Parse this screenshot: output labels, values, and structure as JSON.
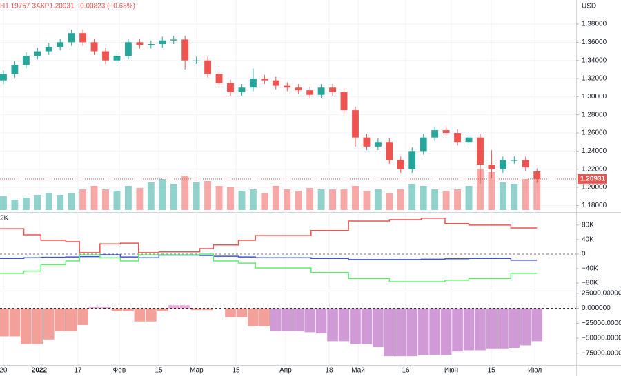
{
  "chart_data": [
    {
      "type": "candlestick",
      "currency": "USD",
      "header": "Н1.19757 ЗАКР1.20931 −0.00823 (−0.68%)",
      "open": [
        1.318,
        1.325,
        1.335,
        1.345,
        1.35,
        1.355,
        1.36,
        1.37,
        1.36,
        1.35,
        1.34,
        1.345,
        1.36,
        1.357,
        1.358,
        1.362,
        1.363,
        1.34,
        1.34,
        1.325,
        1.315,
        1.305,
        1.31,
        1.32,
        1.318,
        1.312,
        1.31,
        1.307,
        1.302,
        1.31,
        1.305,
        1.285,
        1.255,
        1.245,
        1.25,
        1.23,
        1.22,
        1.24,
        1.255,
        1.263,
        1.26,
        1.25,
        1.255,
        1.225,
        1.22,
        1.23,
        1.23,
        1.21754
      ],
      "high": [
        1.329,
        1.339,
        1.349,
        1.354,
        1.359,
        1.364,
        1.374,
        1.374,
        1.364,
        1.354,
        1.349,
        1.364,
        1.364,
        1.362,
        1.366,
        1.367,
        1.367,
        1.344,
        1.344,
        1.329,
        1.319,
        1.314,
        1.331,
        1.324,
        1.322,
        1.316,
        1.314,
        1.311,
        1.314,
        1.314,
        1.309,
        1.289,
        1.259,
        1.254,
        1.254,
        1.234,
        1.244,
        1.259,
        1.267,
        1.267,
        1.264,
        1.259,
        1.259,
        1.241,
        1.234,
        1.234,
        1.234,
        1.221
      ],
      "low": [
        1.314,
        1.321,
        1.331,
        1.341,
        1.346,
        1.351,
        1.356,
        1.356,
        1.346,
        1.336,
        1.336,
        1.341,
        1.353,
        1.353,
        1.354,
        1.358,
        1.33,
        1.336,
        1.321,
        1.311,
        1.301,
        1.301,
        1.306,
        1.314,
        1.308,
        1.306,
        1.303,
        1.298,
        1.298,
        1.301,
        1.281,
        1.245,
        1.241,
        1.241,
        1.226,
        1.216,
        1.216,
        1.236,
        1.251,
        1.256,
        1.246,
        1.246,
        1.204,
        1.21,
        1.216,
        1.226,
        1.218,
        1.205
      ],
      "close": [
        1.325,
        1.335,
        1.345,
        1.35,
        1.355,
        1.36,
        1.37,
        1.36,
        1.35,
        1.34,
        1.345,
        1.36,
        1.357,
        1.358,
        1.362,
        1.363,
        1.34,
        1.34,
        1.325,
        1.315,
        1.305,
        1.31,
        1.32,
        1.318,
        1.312,
        1.31,
        1.307,
        1.302,
        1.31,
        1.305,
        1.285,
        1.255,
        1.245,
        1.25,
        1.23,
        1.22,
        1.24,
        1.255,
        1.263,
        1.26,
        1.25,
        1.255,
        1.225,
        1.22,
        1.23,
        1.23,
        1.222,
        1.20931
      ],
      "volume": [
        20,
        15,
        18,
        22,
        25,
        22,
        25,
        30,
        35,
        30,
        28,
        35,
        32,
        40,
        45,
        38,
        50,
        40,
        42,
        35,
        33,
        28,
        30,
        25,
        35,
        30,
        28,
        32,
        30,
        30,
        30,
        35,
        28,
        30,
        25,
        30,
        38,
        35,
        30,
        28,
        30,
        35,
        60,
        55,
        40,
        38,
        45,
        45
      ],
      "up_color": "#26a69a",
      "down_color": "#ef5350",
      "last_price": {
        "value": 1.20931,
        "label": "1.20931"
      },
      "xlim": [
        -0.3,
        50.45
      ],
      "xticks": [
        {
          "value": 0,
          "label": "20"
        },
        {
          "value": 3.16,
          "label": "2022"
        },
        {
          "value": 6.57,
          "label": "17"
        },
        {
          "value": 10.21,
          "label": "Фев"
        },
        {
          "value": 13.68,
          "label": "15"
        },
        {
          "value": 17.02,
          "label": "Мар"
        },
        {
          "value": 20.49,
          "label": "15"
        },
        {
          "value": 24.86,
          "label": "Апр"
        },
        {
          "value": 28.69,
          "label": "18"
        },
        {
          "value": 31.25,
          "label": "Май"
        },
        {
          "value": 35.44,
          "label": "16"
        },
        {
          "value": 39.45,
          "label": "Июн"
        },
        {
          "value": 42.98,
          "label": "15"
        },
        {
          "value": 46.81,
          "label": "Июл"
        }
      ],
      "ylim": [
        1.175,
        1.4066
      ],
      "yticks": [
        {
          "value": 1.18,
          "label": "1.18000"
        },
        {
          "value": 1.2,
          "label": "1.20000"
        },
        {
          "value": 1.22,
          "label": "1.22000"
        },
        {
          "value": 1.24,
          "label": "1.24000"
        },
        {
          "value": 1.26,
          "label": "1.26000"
        },
        {
          "value": 1.28,
          "label": "1.28000"
        },
        {
          "value": 1.3,
          "label": "1.30000"
        },
        {
          "value": 1.32,
          "label": "1.32000"
        },
        {
          "value": 1.34,
          "label": "1.34000"
        },
        {
          "value": 1.36,
          "label": "1.36000"
        },
        {
          "value": 1.38,
          "label": "1.38000"
        }
      ],
      "grid": true
    },
    {
      "type": "line",
      "indicator_label": "2K",
      "step": true,
      "x": [
        -0.3,
        1.8,
        3.3,
        5.5,
        6.7,
        8.5,
        10.3,
        11.9,
        13.7,
        17.3,
        18.5,
        20.7,
        22.2,
        27.1,
        30.4,
        34.0,
        36.8,
        38.9,
        41.0,
        44.7
      ],
      "series": [
        {
          "color": "#ef5350",
          "values": [
            70000,
            53000,
            38000,
            34000,
            4000,
            28000,
            30000,
            4000,
            6000,
            15000,
            25000,
            38000,
            51000,
            65000,
            91000,
            95000,
            99000,
            84000,
            80000,
            72000
          ]
        },
        {
          "color": "#3f51e0",
          "values": [
            -12000,
            -10000,
            -9000,
            -8000,
            -7000,
            -2000,
            -8000,
            -10000,
            -3000,
            -4000,
            -6000,
            -8000,
            -10000,
            -12000,
            -15000,
            -15000,
            -14000,
            -13000,
            -12000,
            -17000
          ]
        },
        {
          "color": "#5df26a",
          "values": [
            -53000,
            -47000,
            -29000,
            -19000,
            -2000,
            -10000,
            -19000,
            -2000,
            -2000,
            0,
            -19000,
            -25000,
            -38000,
            -51000,
            -67000,
            -76000,
            -76000,
            -72000,
            -67000,
            -53000
          ]
        }
      ],
      "xlim": [
        -0.3,
        50.45
      ],
      "x_end": 47,
      "ylim": [
        -97000,
        112000
      ],
      "yticks": [
        {
          "value": 80000,
          "label": "80K"
        },
        {
          "value": 40000,
          "label": "40K"
        },
        0,
        {
          "value": -40000,
          "label": "−40K"
        },
        {
          "value": -80000,
          "label": "−80K"
        }
      ]
    },
    {
      "type": "histogram",
      "values": [
        -47000,
        -47000,
        -60000,
        -60000,
        -52000,
        -38000,
        -38000,
        -28000,
        2000,
        2000,
        -5000,
        -5000,
        -22000,
        -22000,
        -5000,
        5000,
        5000,
        -3000,
        -3000,
        0,
        -15000,
        -15000,
        -30000,
        -30000,
        -38000,
        -38000,
        -38000,
        -40000,
        -42000,
        -55000,
        -55000,
        -60000,
        -60000,
        -65000,
        -80000,
        -80000,
        -80000,
        -78000,
        -78000,
        -78000,
        -72000,
        -70000,
        -70000,
        -68000,
        -68000,
        -66000,
        -62000,
        -55000
      ],
      "colors": [
        "#f4a09a",
        "#f4a09a",
        "#f4a09a",
        "#f4a09a",
        "#f4a09a",
        "#f4a09a",
        "#f4a09a",
        "#f4a09a",
        "#f0a8d8",
        "#f0a8d8",
        "#f4a09a",
        "#f4a09a",
        "#f4a09a",
        "#f4a09a",
        "#f4a09a",
        "#f0a8d8",
        "#f0a8d8",
        "#f4a09a",
        "#f4a09a",
        "#f4a09a",
        "#f4a09a",
        "#f4a09a",
        "#f4a09a",
        "#f4a09a",
        "#cf9ad6",
        "#cf9ad6",
        "#cf9ad6",
        "#cf9ad6",
        "#cf9ad6",
        "#cf9ad6",
        "#cf9ad6",
        "#cf9ad6",
        "#cf9ad6",
        "#cf9ad6",
        "#cf9ad6",
        "#cf9ad6",
        "#cf9ad6",
        "#cf9ad6",
        "#cf9ad6",
        "#cf9ad6",
        "#cf9ad6",
        "#cf9ad6",
        "#cf9ad6",
        "#cf9ad6",
        "#cf9ad6",
        "#cf9ad6",
        "#cf9ad6",
        "#cf9ad6"
      ],
      "xlim": [
        -0.3,
        50.45
      ],
      "ylim": [
        -94800,
        26000
      ],
      "yticks": [
        {
          "value": 25000,
          "label": "25000.000000"
        },
        {
          "value": 0,
          "label": "0.000000"
        },
        {
          "value": -25000,
          "label": "−25000.000000"
        },
        {
          "value": -50000,
          "label": "−50000.000000"
        },
        {
          "value": -75000,
          "label": "−75000.000000"
        }
      ]
    }
  ]
}
